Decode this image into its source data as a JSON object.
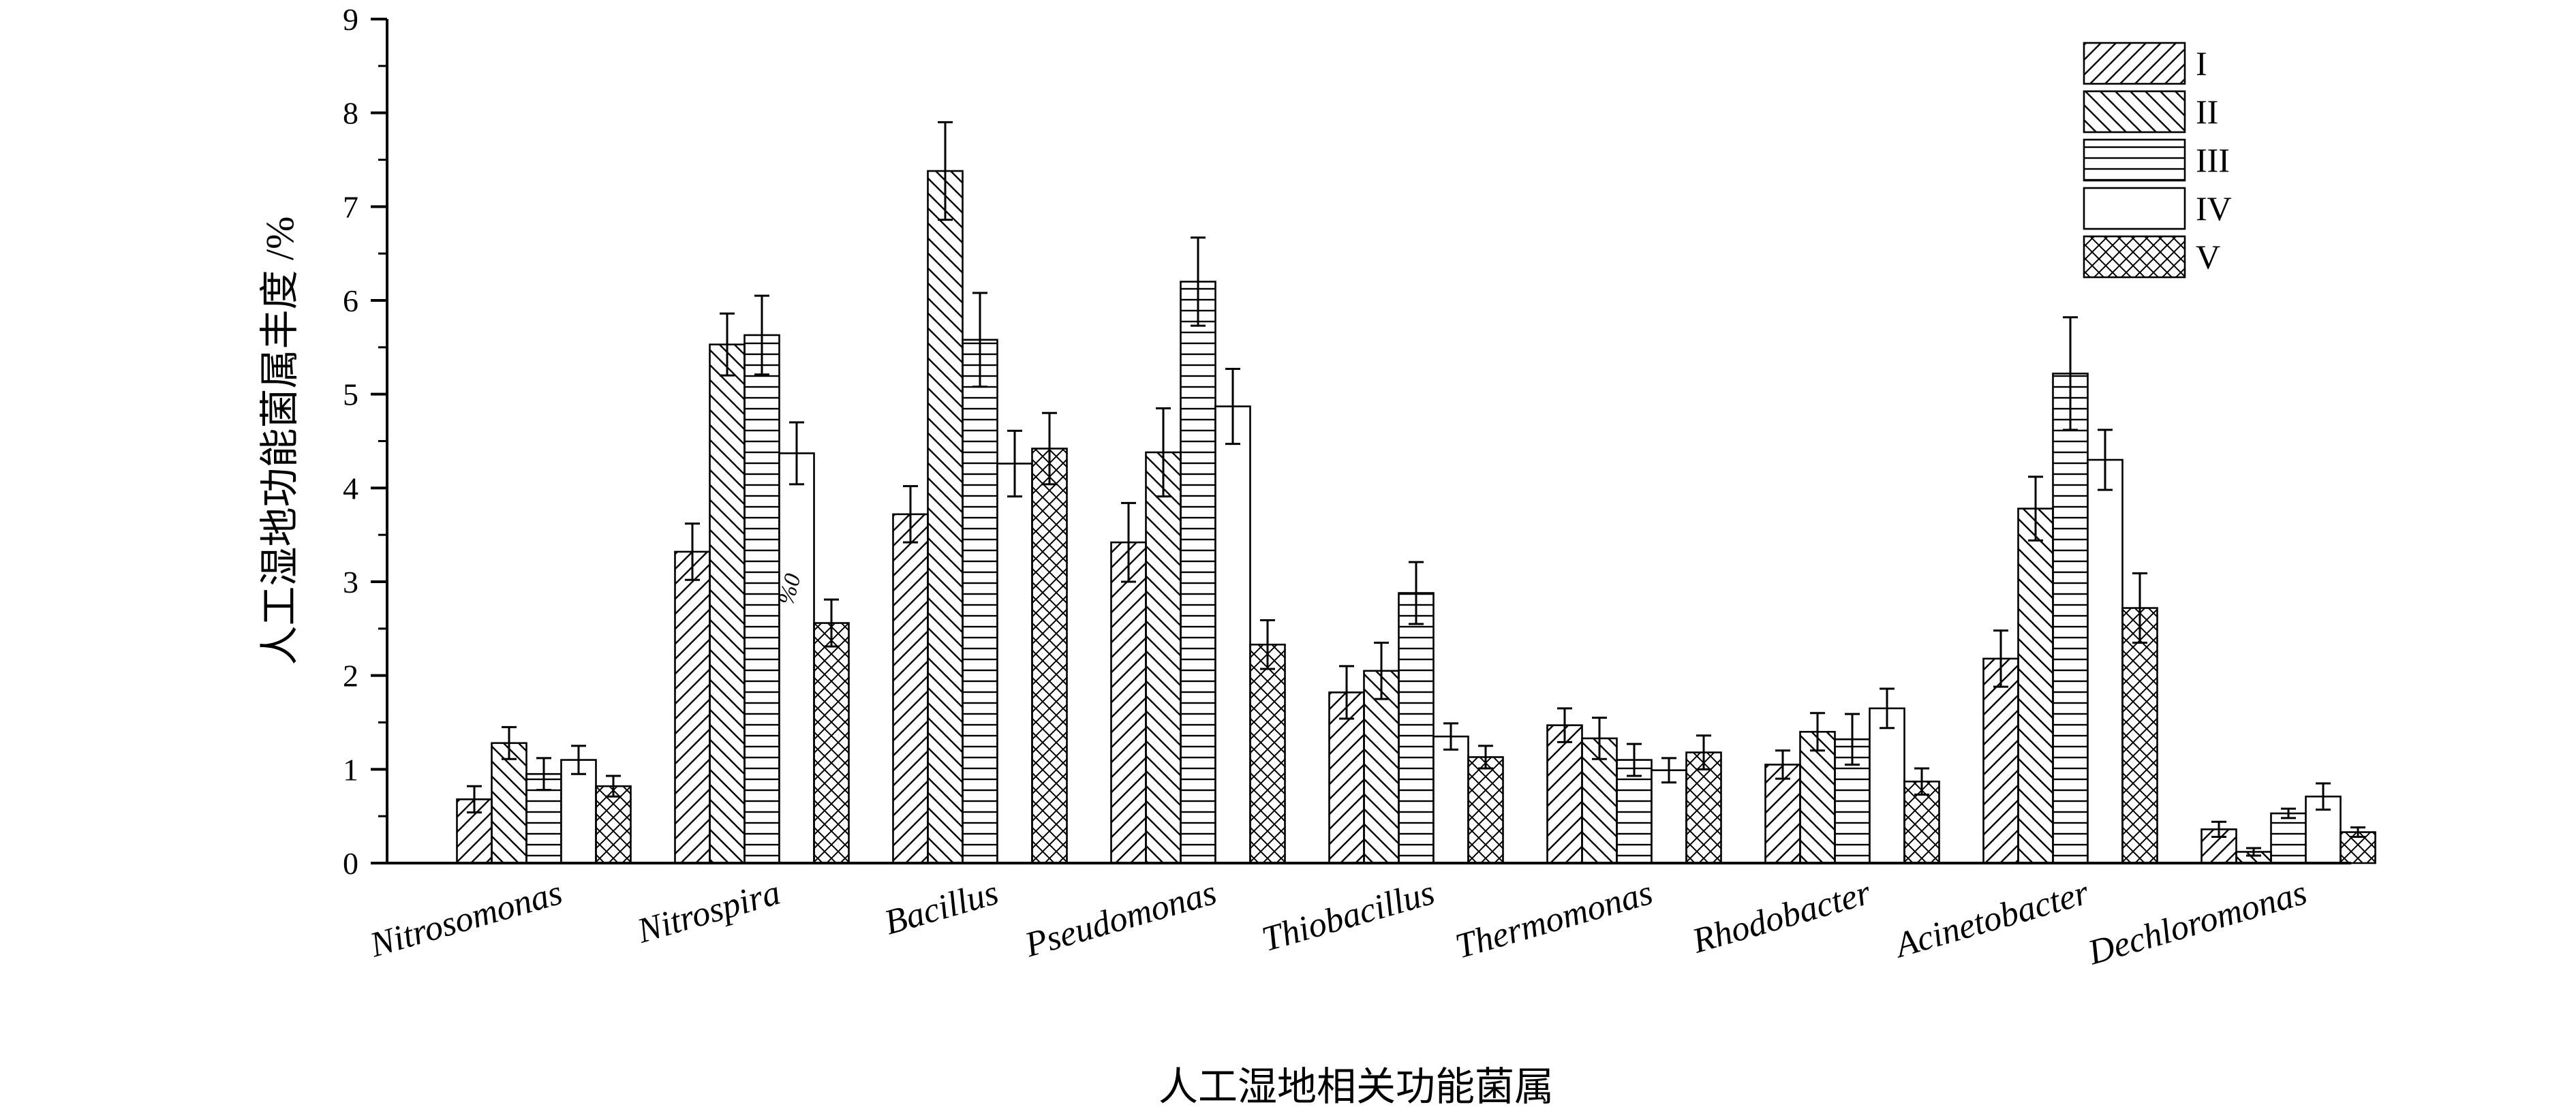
{
  "chart_data": {
    "type": "bar",
    "xlabel": "人工湿地相关功能菌属",
    "ylabel": "人工湿地功能菌属丰度 /%",
    "ylim": [
      0,
      9
    ],
    "yticks": [
      "0",
      "1",
      "2",
      "3",
      "4",
      "5",
      "6",
      "7",
      "8",
      "9"
    ],
    "categories": [
      "Nitrosomonas",
      "Nitrospira",
      "Bacillus",
      "Pseudomonas",
      "Thiobacillus",
      "Thermomonas",
      "Rhodobacter",
      "Acinetobacter",
      "Dechloromonas"
    ],
    "legend_position": "top-right",
    "grid": false,
    "error_bars": true,
    "series": [
      {
        "name": "I",
        "pattern": "diag-right",
        "values": [
          0.68,
          3.32,
          3.72,
          3.42,
          1.82,
          1.47,
          1.05,
          2.18,
          0.36
        ],
        "errors": [
          0.14,
          0.3,
          0.3,
          0.42,
          0.28,
          0.18,
          0.15,
          0.3,
          0.08
        ]
      },
      {
        "name": "II",
        "pattern": "diag-left",
        "values": [
          1.28,
          5.53,
          7.38,
          4.38,
          2.05,
          1.33,
          1.4,
          3.78,
          0.12
        ],
        "errors": [
          0.17,
          0.33,
          0.52,
          0.47,
          0.3,
          0.22,
          0.2,
          0.34,
          0.04
        ]
      },
      {
        "name": "III",
        "pattern": "horizontal",
        "values": [
          0.95,
          5.63,
          5.58,
          6.2,
          2.88,
          1.1,
          1.32,
          5.22,
          0.53
        ],
        "errors": [
          0.17,
          0.42,
          0.5,
          0.47,
          0.33,
          0.17,
          0.27,
          0.6,
          0.05
        ]
      },
      {
        "name": "IV",
        "pattern": "none",
        "values": [
          1.1,
          4.37,
          4.26,
          4.87,
          1.35,
          0.99,
          1.65,
          4.3,
          0.71
        ],
        "errors": [
          0.15,
          0.33,
          0.35,
          0.4,
          0.14,
          0.13,
          0.21,
          0.32,
          0.14
        ]
      },
      {
        "name": "V",
        "pattern": "crosshatch",
        "values": [
          0.82,
          2.56,
          4.42,
          2.33,
          1.13,
          1.18,
          0.87,
          2.72,
          0.33
        ],
        "errors": [
          0.11,
          0.25,
          0.38,
          0.26,
          0.12,
          0.18,
          0.14,
          0.37,
          0.05
        ]
      }
    ],
    "annotations": [
      {
        "text": "%0",
        "category": "Nitrospira",
        "series": "IV"
      }
    ]
  }
}
